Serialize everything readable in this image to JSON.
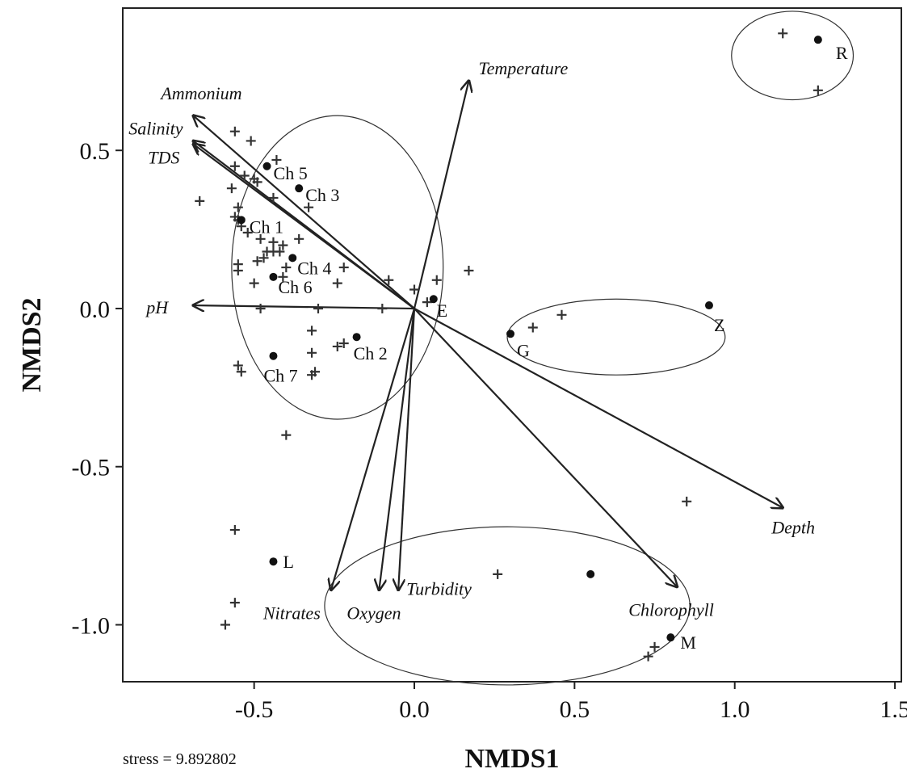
{
  "chart_data": {
    "type": "scatter",
    "title": "",
    "xlabel": "NMDS1",
    "ylabel": "NMDS2",
    "xlim": [
      -0.91,
      1.52
    ],
    "ylim": [
      -1.18,
      0.95
    ],
    "xticks": [
      -0.5,
      0.0,
      0.5,
      1.0,
      1.5
    ],
    "xtick_labels": [
      "-0.5",
      "0.0",
      "0.5",
      "1.0",
      "1.5"
    ],
    "yticks": [
      0.5,
      0.0,
      -0.5,
      -1.0
    ],
    "ytick_labels": [
      "0.5",
      "0.0",
      "-0.5",
      "-1.0"
    ],
    "grid": false,
    "stress_text": "stress = 9.892802",
    "sites": [
      {
        "label": "R",
        "x": 1.26,
        "y": 0.85
      },
      {
        "label": "Ch 5",
        "x": -0.46,
        "y": 0.45
      },
      {
        "label": "Ch 3",
        "x": -0.36,
        "y": 0.38
      },
      {
        "label": "Ch 1",
        "x": -0.54,
        "y": 0.28
      },
      {
        "label": "Ch 4",
        "x": -0.38,
        "y": 0.16
      },
      {
        "label": "Ch 6",
        "x": -0.44,
        "y": 0.1
      },
      {
        "label": "E",
        "x": 0.06,
        "y": 0.03
      },
      {
        "label": "Z",
        "x": 0.92,
        "y": 0.01
      },
      {
        "label": "G",
        "x": 0.3,
        "y": -0.08
      },
      {
        "label": "Ch 2",
        "x": -0.18,
        "y": -0.09
      },
      {
        "label": "Ch 7",
        "x": -0.44,
        "y": -0.15
      },
      {
        "label": "L",
        "x": -0.44,
        "y": -0.8
      },
      {
        "label": "",
        "x": 0.55,
        "y": -0.84
      },
      {
        "label": "M",
        "x": 0.8,
        "y": -1.04
      }
    ],
    "species": [
      [
        1.15,
        0.87
      ],
      [
        1.26,
        0.69
      ],
      [
        -0.56,
        0.56
      ],
      [
        -0.51,
        0.53
      ],
      [
        -0.43,
        0.47
      ],
      [
        -0.56,
        0.45
      ],
      [
        -0.53,
        0.42
      ],
      [
        -0.5,
        0.41
      ],
      [
        -0.49,
        0.4
      ],
      [
        -0.57,
        0.38
      ],
      [
        -0.67,
        0.34
      ],
      [
        -0.44,
        0.35
      ],
      [
        -0.33,
        0.32
      ],
      [
        -0.55,
        0.32
      ],
      [
        -0.56,
        0.29
      ],
      [
        -0.55,
        0.28
      ],
      [
        -0.54,
        0.26
      ],
      [
        -0.52,
        0.24
      ],
      [
        -0.48,
        0.22
      ],
      [
        -0.44,
        0.21
      ],
      [
        -0.36,
        0.22
      ],
      [
        -0.41,
        0.2
      ],
      [
        -0.46,
        0.18
      ],
      [
        -0.44,
        0.18
      ],
      [
        -0.47,
        0.16
      ],
      [
        -0.42,
        0.18
      ],
      [
        -0.55,
        0.14
      ],
      [
        -0.55,
        0.12
      ],
      [
        -0.49,
        0.15
      ],
      [
        -0.4,
        0.13
      ],
      [
        -0.22,
        0.13
      ],
      [
        -0.41,
        0.1
      ],
      [
        -0.5,
        0.08
      ],
      [
        -0.24,
        0.08
      ],
      [
        -0.08,
        0.09
      ],
      [
        0.07,
        0.09
      ],
      [
        0.17,
        0.12
      ],
      [
        0.0,
        0.06
      ],
      [
        -0.48,
        0.0
      ],
      [
        -0.3,
        0.0
      ],
      [
        -0.1,
        0.0
      ],
      [
        0.04,
        0.02
      ],
      [
        -0.32,
        -0.07
      ],
      [
        -0.32,
        -0.14
      ],
      [
        -0.22,
        -0.11
      ],
      [
        -0.24,
        -0.12
      ],
      [
        -0.55,
        -0.18
      ],
      [
        -0.54,
        -0.2
      ],
      [
        -0.31,
        -0.2
      ],
      [
        -0.32,
        -0.21
      ],
      [
        -0.4,
        -0.4
      ],
      [
        0.46,
        -0.02
      ],
      [
        0.37,
        -0.06
      ],
      [
        0.85,
        -0.61
      ],
      [
        -0.56,
        -0.7
      ],
      [
        0.26,
        -0.84
      ],
      [
        -0.56,
        -0.93
      ],
      [
        -0.59,
        -1.0
      ],
      [
        0.75,
        -1.07
      ],
      [
        0.73,
        -1.1
      ]
    ],
    "vectors": [
      {
        "label": "Temperature",
        "x": 0.17,
        "y": 0.72
      },
      {
        "label": "Ammonium",
        "x": -0.69,
        "y": 0.61
      },
      {
        "label": "Salinity",
        "x": -0.69,
        "y": 0.53
      },
      {
        "label": "TDS",
        "x": -0.69,
        "y": 0.52
      },
      {
        "label": "pH",
        "x": -0.69,
        "y": 0.01
      },
      {
        "label": "Depth",
        "x": 1.15,
        "y": -0.63
      },
      {
        "label": "Chlorophyll",
        "x": 0.82,
        "y": -0.88
      },
      {
        "label": "Nitrates",
        "x": -0.26,
        "y": -0.89
      },
      {
        "label": "Oxygen",
        "x": -0.11,
        "y": -0.89
      },
      {
        "label": "Turbidity",
        "x": -0.05,
        "y": -0.89
      }
    ],
    "group_ellipses": [
      {
        "cx": 1.18,
        "cy": 0.8,
        "rx": 0.19,
        "ry": 0.14,
        "sites": [
          "R"
        ]
      },
      {
        "cx": -0.24,
        "cy": 0.13,
        "rx": 0.33,
        "ry": 0.48,
        "sites": [
          "Ch 1",
          "Ch 2",
          "Ch 3",
          "Ch 4",
          "Ch 5",
          "Ch 6",
          "Ch 7",
          "E"
        ]
      },
      {
        "cx": 0.63,
        "cy": -0.09,
        "rx": 0.34,
        "ry": 0.12,
        "sites": [
          "G",
          "Z"
        ]
      },
      {
        "cx": 0.29,
        "cy": -0.94,
        "rx": 0.57,
        "ry": 0.25,
        "sites": [
          "L",
          "M"
        ]
      }
    ]
  }
}
